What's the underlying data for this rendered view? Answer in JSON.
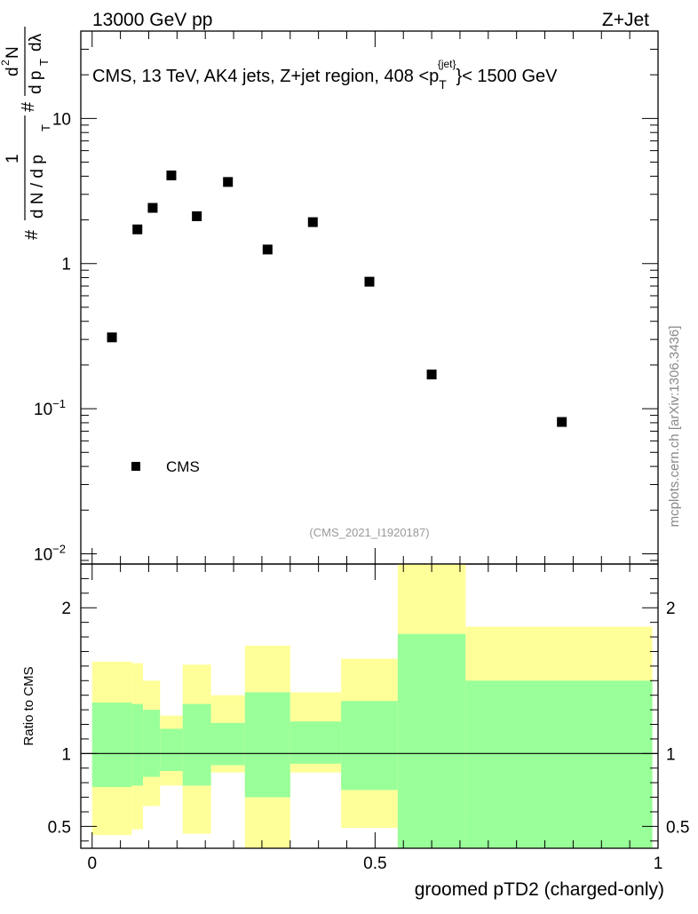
{
  "header": {
    "left": "13000 GeV pp",
    "right": "Z+Jet",
    "side_label": "mcplots.cern.ch [arXiv:1306.3436]",
    "analysis_id": "(CMS_2021_I1920187)"
  },
  "chart_data": [
    {
      "type": "scatter",
      "title": "CMS, 13 TeV, AK4 jets, Z+jet region, 408 <p_T^{jet}< 1500 GeV",
      "title_parts": {
        "a": "CMS, 13 TeV, AK4 jets, Z+jet region, 408 <p",
        "sub": "T",
        "sup": "{jet}",
        "b": "}< 1500 GeV"
      },
      "yscale": "log",
      "ylim": [
        0.0085,
        40
      ],
      "xlim": [
        -0.02,
        1.0
      ],
      "ylabel": "# 1/(dN/dp_T #) d²N/(dp_T dλ)",
      "yticks": [
        {
          "value": 0.01,
          "label": "10",
          "exp": "−2"
        },
        {
          "value": 0.1,
          "label": "10",
          "exp": "−1"
        },
        {
          "value": 1,
          "label": "1",
          "exp": ""
        },
        {
          "value": 10,
          "label": "10",
          "exp": ""
        }
      ],
      "legend": {
        "label": "CMS",
        "position": "bottom-left"
      },
      "series": [
        {
          "name": "CMS",
          "x": [
            0.035,
            0.08,
            0.107,
            0.14,
            0.185,
            0.24,
            0.31,
            0.39,
            0.49,
            0.6,
            0.83
          ],
          "y": [
            0.31,
            1.72,
            2.42,
            4.05,
            2.12,
            3.65,
            1.25,
            1.93,
            0.75,
            0.172,
            0.081
          ]
        }
      ]
    },
    {
      "type": "area",
      "ylabel": "Ratio to CMS",
      "xlabel": "groomed pTD2 (charged-only)",
      "xlim": [
        -0.02,
        1.0
      ],
      "ylim": [
        0.35,
        2.3
      ],
      "xticks": [
        {
          "value": 0,
          "label": "0"
        },
        {
          "value": 0.5,
          "label": "0.5"
        },
        {
          "value": 1,
          "label": "1"
        }
      ],
      "yticks": [
        {
          "value": 0.5,
          "label": "0.5"
        },
        {
          "value": 1,
          "label": "1"
        },
        {
          "value": 2,
          "label": "2"
        }
      ],
      "reference_line": 1,
      "colors": {
        "outer_band": "#ffff99",
        "inner_band": "#99ff99",
        "line": "#000000"
      },
      "bins": [
        {
          "lo": 0.0,
          "hi": 0.07,
          "outer": [
            0.44,
            1.63
          ],
          "inner": [
            0.77,
            1.35
          ]
        },
        {
          "lo": 0.07,
          "hi": 0.09,
          "outer": [
            0.48,
            1.62
          ],
          "inner": [
            0.78,
            1.34
          ]
        },
        {
          "lo": 0.09,
          "hi": 0.12,
          "outer": [
            0.64,
            1.5
          ],
          "inner": [
            0.84,
            1.3
          ]
        },
        {
          "lo": 0.12,
          "hi": 0.16,
          "outer": [
            0.78,
            1.26
          ],
          "inner": [
            0.88,
            1.17
          ]
        },
        {
          "lo": 0.16,
          "hi": 0.21,
          "outer": [
            0.45,
            1.61
          ],
          "inner": [
            0.78,
            1.34
          ]
        },
        {
          "lo": 0.21,
          "hi": 0.27,
          "outer": [
            0.87,
            1.4
          ],
          "inner": [
            0.92,
            1.21
          ]
        },
        {
          "lo": 0.27,
          "hi": 0.35,
          "outer": [
            0.35,
            1.74
          ],
          "inner": [
            0.7,
            1.42
          ]
        },
        {
          "lo": 0.35,
          "hi": 0.44,
          "outer": [
            0.87,
            1.42
          ],
          "inner": [
            0.93,
            1.22
          ]
        },
        {
          "lo": 0.44,
          "hi": 0.54,
          "outer": [
            0.49,
            1.65
          ],
          "inner": [
            0.75,
            1.36
          ]
        },
        {
          "lo": 0.54,
          "hi": 0.66,
          "outer": [
            0.35,
            2.3
          ],
          "inner": [
            0.35,
            1.82
          ]
        },
        {
          "lo": 0.66,
          "hi": 0.99,
          "outer": [
            0.61,
            1.87
          ],
          "inner": [
            0.35,
            1.5
          ]
        }
      ]
    }
  ]
}
